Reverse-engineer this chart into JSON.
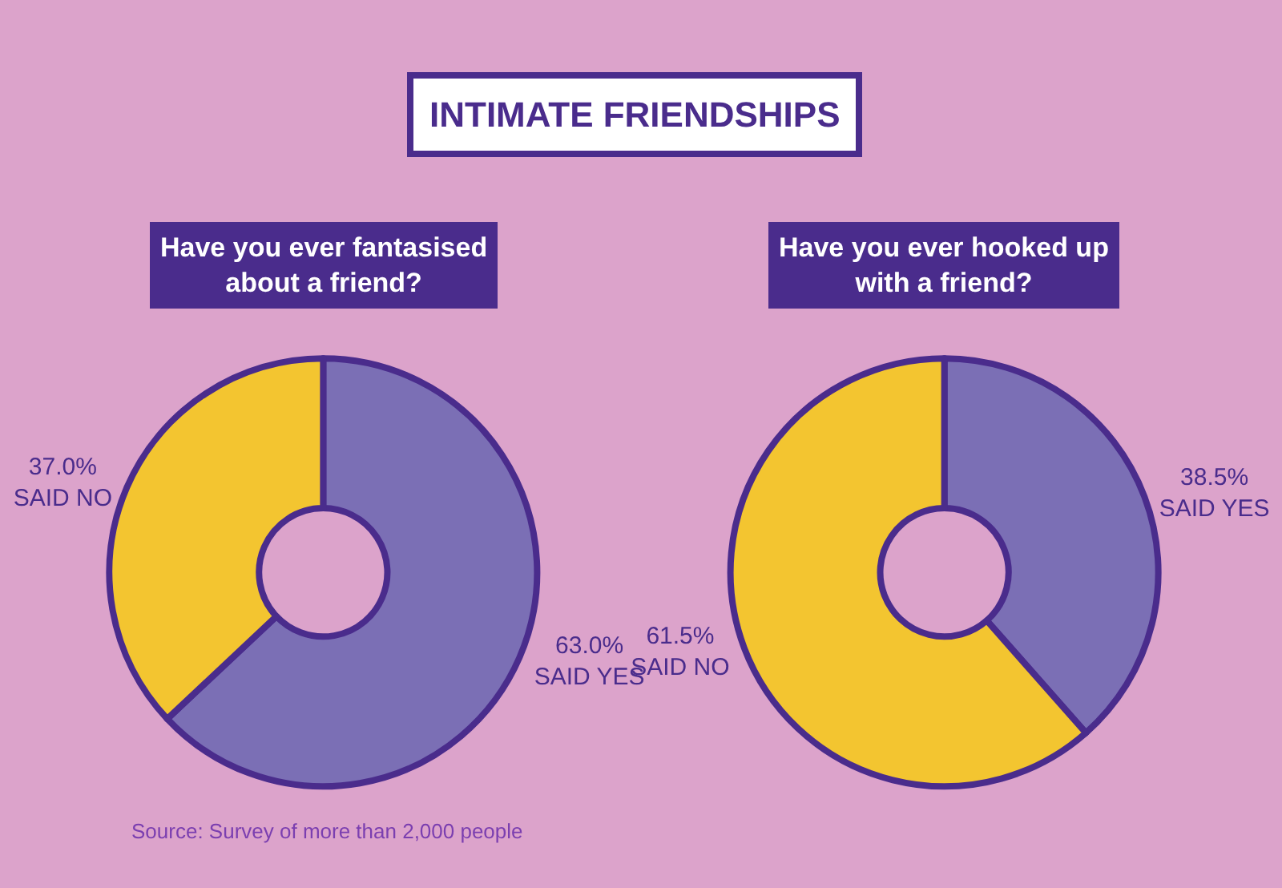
{
  "chart_data": [
    {
      "type": "other",
      "title": "INTIMATE FRIENDSHIPS"
    },
    {
      "type": "donut",
      "title": "Have you ever fantasised about a friend?",
      "categories": [
        "SAID YES",
        "SAID NO"
      ],
      "values": [
        63.0,
        37.0
      ],
      "value_labels": [
        "63.0%",
        "37.0%"
      ],
      "colors": [
        "#7b6fb5",
        "#f3c530"
      ],
      "legend": false
    },
    {
      "type": "donut",
      "title": "Have you ever hooked up with a friend?",
      "categories": [
        "SAID YES",
        "SAID NO"
      ],
      "values": [
        38.5,
        61.5
      ],
      "value_labels": [
        "38.5%",
        "61.5%"
      ],
      "colors": [
        "#7b6fb5",
        "#f3c530"
      ],
      "legend": false,
      "annotations": [
        "Source: Survey of more than 2,000 people"
      ]
    }
  ]
}
